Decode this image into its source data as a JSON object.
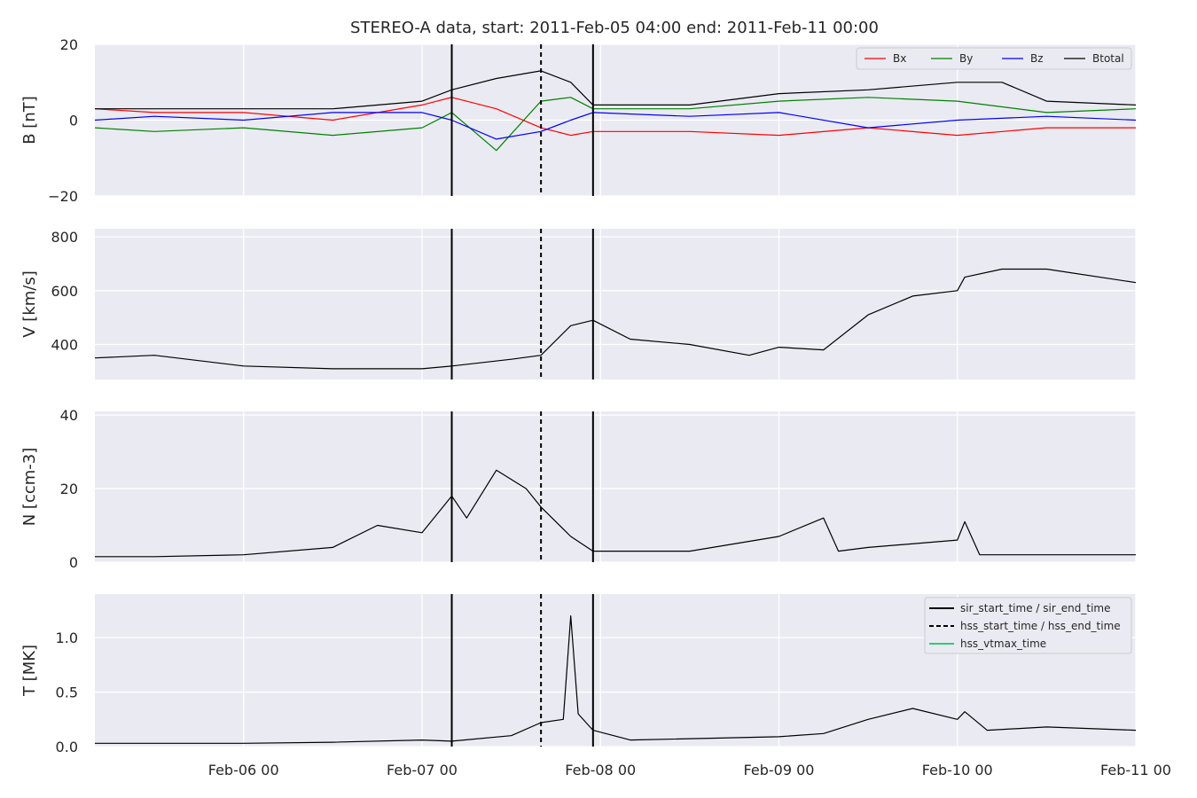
{
  "figure": {
    "title": "STEREO-A data, start: 2011-Feb-05 04:00  end: 2011-Feb-11 00:00"
  },
  "colors": {
    "plot_bg": "#EAEAF2",
    "grid": "#FFFFFF",
    "bx": "#FF0000",
    "by": "#008000",
    "bz": "#0000FF",
    "btotal": "#000000",
    "marker": "#000000",
    "vtmax": "#2ECC71"
  },
  "x_axis": {
    "start": "2011-02-05T04:00",
    "end": "2011-02-11T00:00",
    "ticks": [
      {
        "t": "2011-02-06T00:00",
        "label": "Feb-06 00"
      },
      {
        "t": "2011-02-07T00:00",
        "label": "Feb-07 00"
      },
      {
        "t": "2011-02-08T00:00",
        "label": "Feb-08 00"
      },
      {
        "t": "2011-02-09T00:00",
        "label": "Feb-09 00"
      },
      {
        "t": "2011-02-10T00:00",
        "label": "Feb-10 00"
      },
      {
        "t": "2011-02-11T00:00",
        "label": "Feb-11 00"
      }
    ]
  },
  "markers": {
    "sir_start_time": "2011-02-07T04:00",
    "hss_start_time": "2011-02-07T16:00",
    "sir_end_time": "2011-02-07T23:00"
  },
  "legends": {
    "b": [
      {
        "label": "Bx",
        "color_key": "bx"
      },
      {
        "label": "By",
        "color_key": "by"
      },
      {
        "label": "Bz",
        "color_key": "bz"
      },
      {
        "label": "Btotal",
        "color_key": "btotal"
      }
    ],
    "t": [
      {
        "label": "sir_start_time / sir_end_time",
        "style": "solid",
        "color_key": "marker"
      },
      {
        "label": "hss_start_time / hss_end_time",
        "style": "dashed",
        "color_key": "marker"
      },
      {
        "label": "hss_vtmax_time",
        "style": "solid",
        "color_key": "vtmax"
      }
    ]
  },
  "chart_data": [
    {
      "type": "line",
      "ylabel": "B [nT]",
      "ylim": [
        -20,
        20
      ],
      "yticks": [
        -20,
        0,
        20
      ],
      "ytick_labels": [
        "−20",
        "0",
        "20"
      ],
      "grid": true,
      "legend_placement": "top-right",
      "series": [
        {
          "name": "Bx",
          "color_key": "bx",
          "x": [
            "2011-02-05T04:00",
            "2011-02-05T12:00",
            "2011-02-06T00:00",
            "2011-02-06T12:00",
            "2011-02-07T00:00",
            "2011-02-07T04:00",
            "2011-02-07T10:00",
            "2011-02-07T16:00",
            "2011-02-07T20:00",
            "2011-02-07T23:00",
            "2011-02-08T12:00",
            "2011-02-09T00:00",
            "2011-02-09T12:00",
            "2011-02-10T00:00",
            "2011-02-10T12:00",
            "2011-02-11T00:00"
          ],
          "y": [
            3,
            2,
            2,
            0,
            4,
            6,
            3,
            -2,
            -4,
            -3,
            -3,
            -4,
            -2,
            -4,
            -2,
            -2
          ]
        },
        {
          "name": "By",
          "color_key": "by",
          "x": [
            "2011-02-05T04:00",
            "2011-02-05T12:00",
            "2011-02-06T00:00",
            "2011-02-06T12:00",
            "2011-02-07T00:00",
            "2011-02-07T04:00",
            "2011-02-07T10:00",
            "2011-02-07T16:00",
            "2011-02-07T20:00",
            "2011-02-07T23:00",
            "2011-02-08T12:00",
            "2011-02-09T00:00",
            "2011-02-09T12:00",
            "2011-02-10T00:00",
            "2011-02-10T12:00",
            "2011-02-11T00:00"
          ],
          "y": [
            -2,
            -3,
            -2,
            -4,
            -2,
            2,
            -8,
            5,
            6,
            3,
            3,
            5,
            6,
            5,
            2,
            3
          ]
        },
        {
          "name": "Bz",
          "color_key": "bz",
          "x": [
            "2011-02-05T04:00",
            "2011-02-05T12:00",
            "2011-02-06T00:00",
            "2011-02-06T12:00",
            "2011-02-07T00:00",
            "2011-02-07T04:00",
            "2011-02-07T10:00",
            "2011-02-07T16:00",
            "2011-02-07T20:00",
            "2011-02-07T23:00",
            "2011-02-08T12:00",
            "2011-02-09T00:00",
            "2011-02-09T12:00",
            "2011-02-10T00:00",
            "2011-02-10T12:00",
            "2011-02-11T00:00"
          ],
          "y": [
            0,
            1,
            0,
            2,
            2,
            0,
            -5,
            -3,
            0,
            2,
            1,
            2,
            -2,
            0,
            1,
            0
          ]
        },
        {
          "name": "Btotal",
          "color_key": "btotal",
          "x": [
            "2011-02-05T04:00",
            "2011-02-05T12:00",
            "2011-02-06T00:00",
            "2011-02-06T12:00",
            "2011-02-07T00:00",
            "2011-02-07T04:00",
            "2011-02-07T10:00",
            "2011-02-07T16:00",
            "2011-02-07T20:00",
            "2011-02-07T23:00",
            "2011-02-08T12:00",
            "2011-02-09T00:00",
            "2011-02-09T12:00",
            "2011-02-10T00:00",
            "2011-02-10T06:00",
            "2011-02-10T12:00",
            "2011-02-11T00:00"
          ],
          "y": [
            3,
            3,
            3,
            3,
            5,
            8,
            11,
            13,
            10,
            4,
            4,
            7,
            8,
            10,
            10,
            5,
            4
          ]
        }
      ]
    },
    {
      "type": "line",
      "ylabel": "V [km/s]",
      "ylim": [
        270,
        830
      ],
      "yticks": [
        400,
        600,
        800
      ],
      "ytick_labels": [
        "400",
        "600",
        "800"
      ],
      "grid": true,
      "series": [
        {
          "color_key": "btotal",
          "x": [
            "2011-02-05T04:00",
            "2011-02-05T12:00",
            "2011-02-06T00:00",
            "2011-02-06T12:00",
            "2011-02-07T00:00",
            "2011-02-07T04:00",
            "2011-02-07T12:00",
            "2011-02-07T16:00",
            "2011-02-07T20:00",
            "2011-02-07T23:00",
            "2011-02-08T04:00",
            "2011-02-08T12:00",
            "2011-02-08T20:00",
            "2011-02-09T00:00",
            "2011-02-09T06:00",
            "2011-02-09T12:00",
            "2011-02-09T18:00",
            "2011-02-10T00:00",
            "2011-02-10T01:00",
            "2011-02-10T06:00",
            "2011-02-10T12:00",
            "2011-02-11T00:00"
          ],
          "y": [
            350,
            360,
            320,
            310,
            310,
            320,
            345,
            360,
            470,
            490,
            420,
            400,
            360,
            390,
            380,
            510,
            580,
            600,
            650,
            680,
            680,
            630
          ]
        }
      ]
    },
    {
      "type": "line",
      "ylabel": "N [ccm-3]",
      "ylim": [
        0,
        41
      ],
      "yticks": [
        0,
        20,
        40
      ],
      "ytick_labels": [
        "0",
        "20",
        "40"
      ],
      "grid": true,
      "series": [
        {
          "color_key": "btotal",
          "x": [
            "2011-02-05T04:00",
            "2011-02-05T12:00",
            "2011-02-06T00:00",
            "2011-02-06T12:00",
            "2011-02-06T18:00",
            "2011-02-07T00:00",
            "2011-02-07T04:00",
            "2011-02-07T06:00",
            "2011-02-07T10:00",
            "2011-02-07T14:00",
            "2011-02-07T16:00",
            "2011-02-07T20:00",
            "2011-02-07T23:00",
            "2011-02-08T12:00",
            "2011-02-09T00:00",
            "2011-02-09T06:00",
            "2011-02-09T08:00",
            "2011-02-09T12:00",
            "2011-02-10T00:00",
            "2011-02-10T01:00",
            "2011-02-10T03:00",
            "2011-02-10T12:00",
            "2011-02-11T00:00"
          ],
          "y": [
            1.5,
            1.5,
            2,
            4,
            10,
            8,
            18,
            12,
            25,
            20,
            15,
            7,
            3,
            3,
            7,
            12,
            3,
            4,
            6,
            11,
            2,
            2,
            2
          ]
        }
      ]
    },
    {
      "type": "line",
      "ylabel": "T [MK]",
      "ylim": [
        0,
        1.4
      ],
      "yticks": [
        0.0,
        0.5,
        1.0
      ],
      "ytick_labels": [
        "0.0",
        "0.5",
        "1.0"
      ],
      "grid": true,
      "legend_placement": "top-right",
      "series": [
        {
          "color_key": "btotal",
          "x": [
            "2011-02-05T04:00",
            "2011-02-06T00:00",
            "2011-02-06T12:00",
            "2011-02-07T00:00",
            "2011-02-07T04:00",
            "2011-02-07T12:00",
            "2011-02-07T16:00",
            "2011-02-07T19:00",
            "2011-02-07T20:00",
            "2011-02-07T21:00",
            "2011-02-07T23:00",
            "2011-02-08T04:00",
            "2011-02-09T00:00",
            "2011-02-09T06:00",
            "2011-02-09T12:00",
            "2011-02-09T18:00",
            "2011-02-10T00:00",
            "2011-02-10T01:00",
            "2011-02-10T04:00",
            "2011-02-10T12:00",
            "2011-02-11T00:00"
          ],
          "y": [
            0.03,
            0.03,
            0.04,
            0.06,
            0.05,
            0.1,
            0.22,
            0.25,
            1.2,
            0.3,
            0.15,
            0.06,
            0.09,
            0.12,
            0.25,
            0.35,
            0.25,
            0.32,
            0.15,
            0.18,
            0.15
          ]
        }
      ]
    }
  ]
}
